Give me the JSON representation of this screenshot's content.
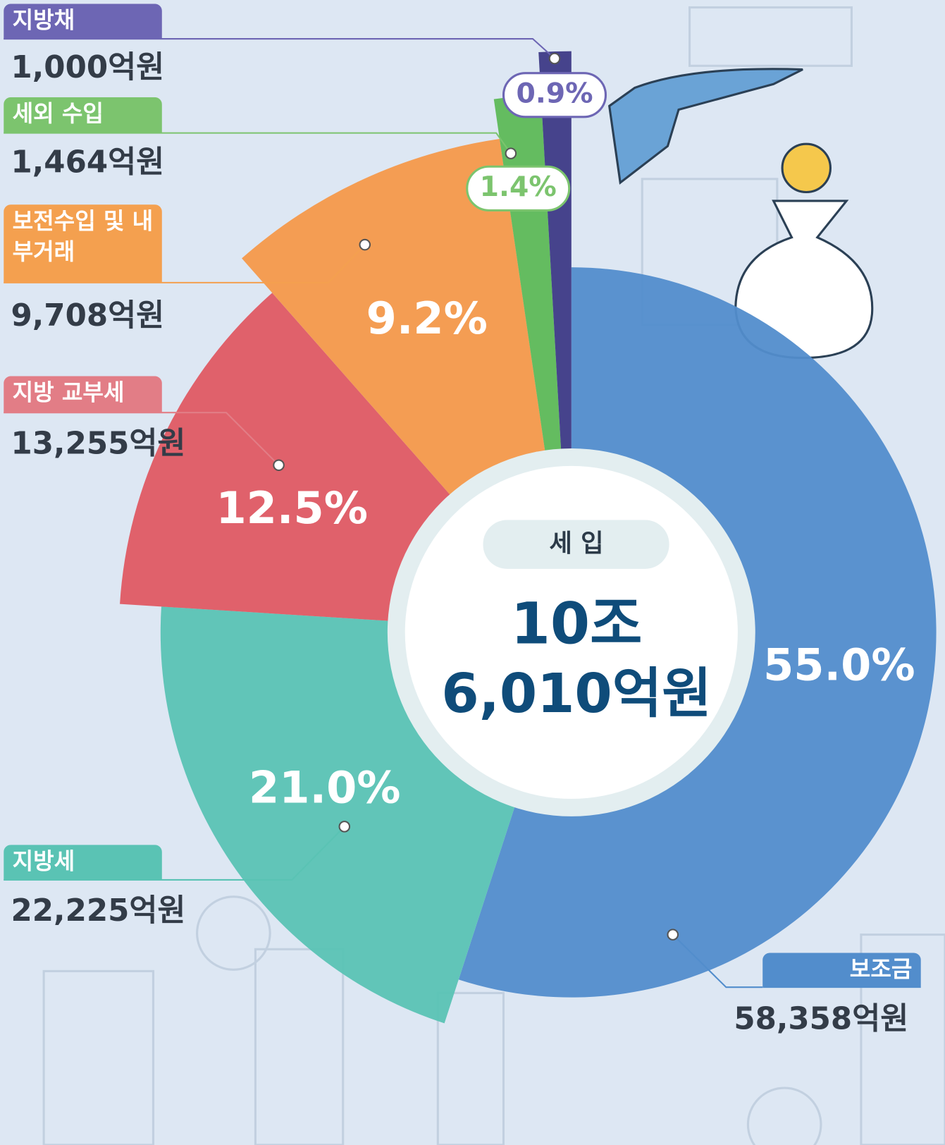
{
  "chart_data": {
    "type": "pie",
    "center_title": "세 입",
    "center_value": [
      "10조",
      "6,010억원"
    ],
    "categories": [
      "보조금",
      "지방세",
      "지방 교부세",
      "보전수입 및 내부거래",
      "세외 수입",
      "지방채"
    ],
    "values": [
      55.0,
      21.0,
      12.5,
      9.2,
      1.4,
      0.9
    ],
    "value_labels": [
      "55.0%",
      "21.0%",
      "12.5%",
      "9.2%",
      "1.4%",
      "0.9%"
    ],
    "amounts": [
      58358,
      22225,
      13255,
      9708,
      1464,
      1000
    ],
    "amount_labels": [
      "58,358억원",
      "22,225억원",
      "13,255억원",
      "9,708억원",
      "1,464억원",
      "1,000억원"
    ],
    "colors": [
      "#528dcc",
      "#5ac3b4",
      "#df5a63",
      "#f4994a",
      "#5db957",
      "#3d3a86"
    ],
    "tag_colors": [
      "#528dcc",
      "#5ac3b4",
      "#e27d86",
      "#f4a04f",
      "#7cc46e",
      "#6d66b4"
    ]
  }
}
